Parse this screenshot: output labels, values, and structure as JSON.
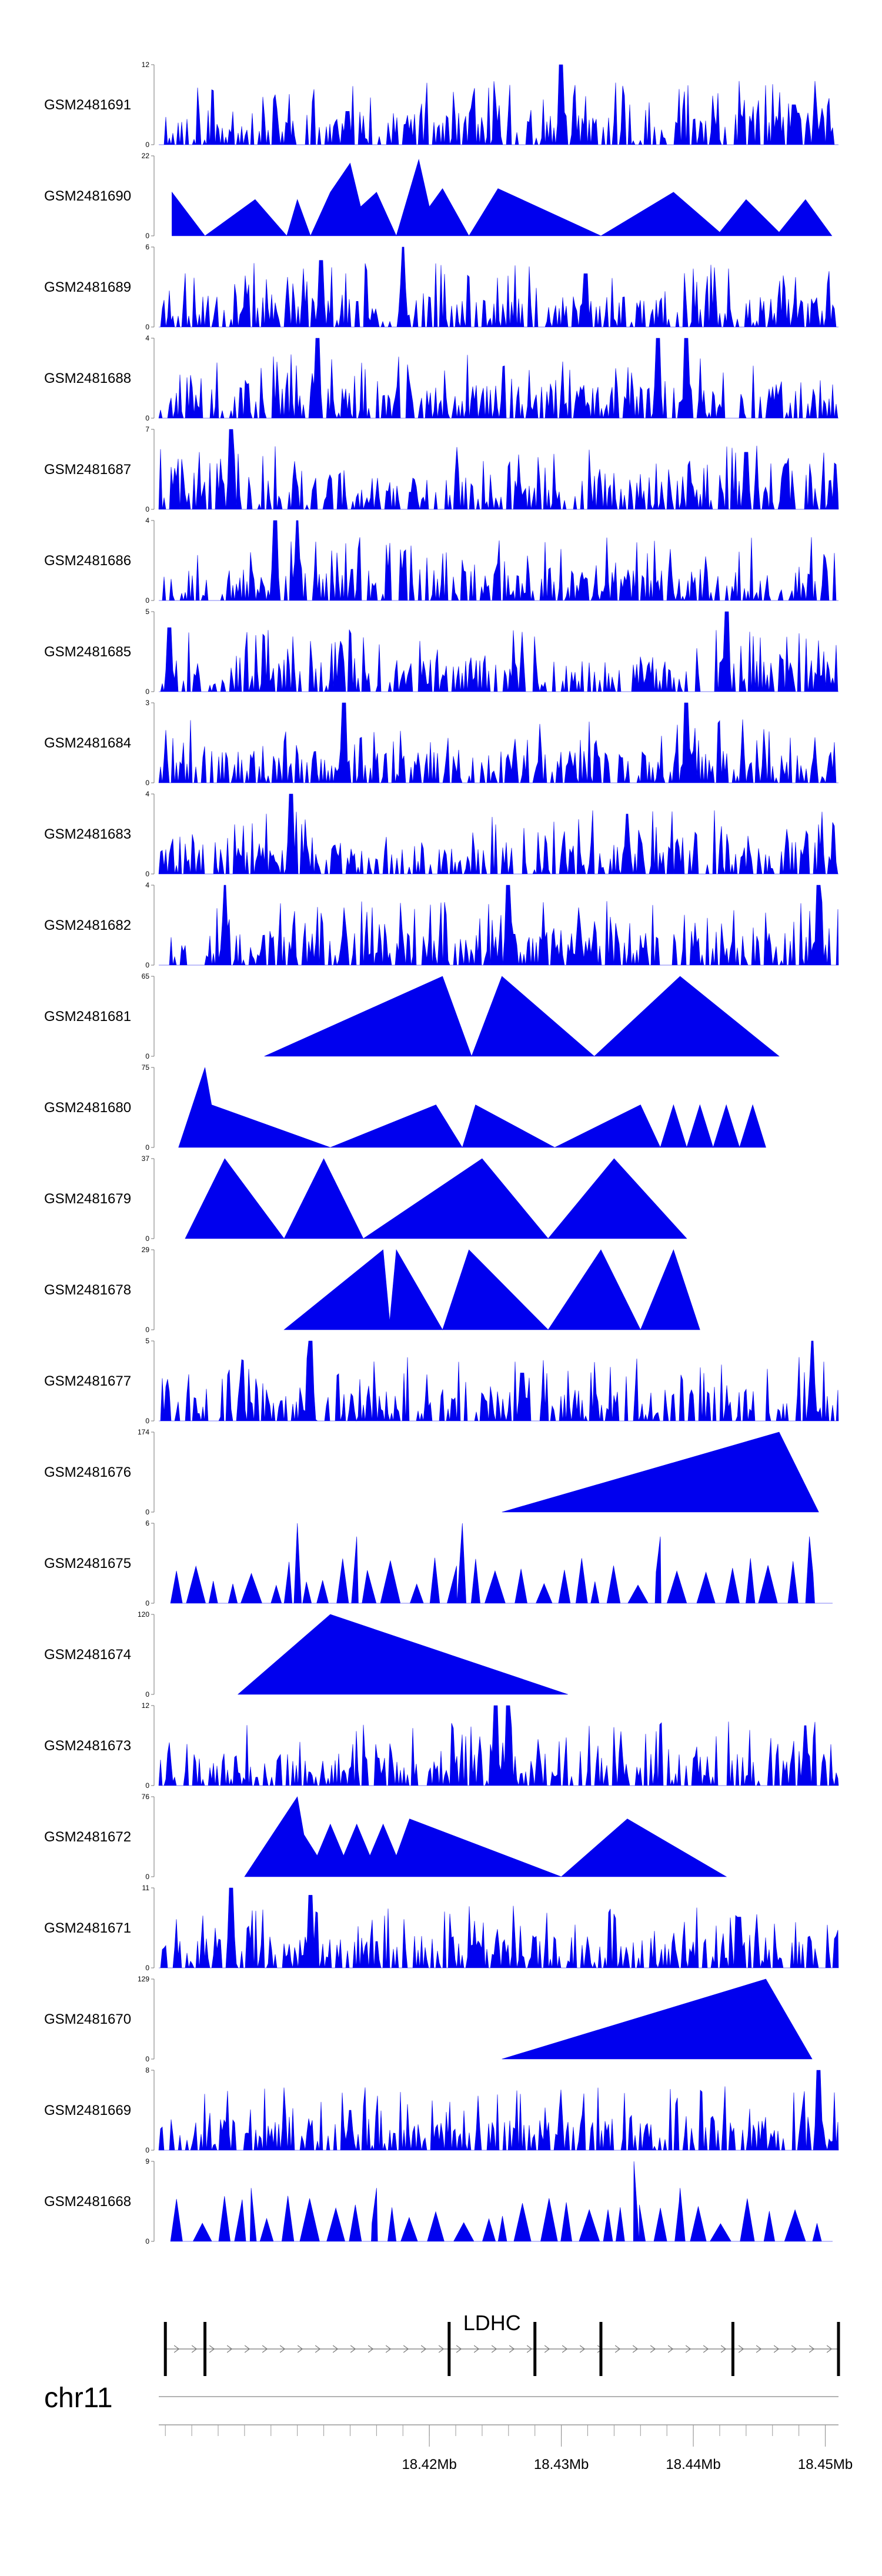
{
  "chart_data": {
    "type": "area",
    "title": "",
    "chromosome": "chr11",
    "fill_color": "#0000ee",
    "xlim": [
      18.3995,
      18.451
    ],
    "tracks": [
      {
        "name": "GSM2481691",
        "ymax": "12",
        "ymin": "0",
        "style": "dense",
        "seed": 11,
        "peaks": [
          [
            18.43,
            12
          ],
          [
            18.4138,
            5
          ],
          [
            18.4476,
            6
          ]
        ]
      },
      {
        "name": "GSM2481690",
        "ymax": "22",
        "ymin": "0",
        "style": "sparse",
        "peaks": [
          [
            18.4005,
            12
          ],
          [
            18.403,
            0
          ],
          [
            18.4068,
            10
          ],
          [
            18.4092,
            0
          ],
          [
            18.41,
            10
          ],
          [
            18.411,
            0
          ],
          [
            18.4125,
            12
          ],
          [
            18.414,
            20
          ],
          [
            18.4148,
            8
          ],
          [
            18.416,
            12
          ],
          [
            18.4175,
            0
          ],
          [
            18.4192,
            21
          ],
          [
            18.42,
            8
          ],
          [
            18.421,
            13
          ],
          [
            18.423,
            0
          ],
          [
            18.4252,
            13
          ],
          [
            18.433,
            0
          ],
          [
            18.4385,
            12
          ],
          [
            18.442,
            1
          ],
          [
            18.444,
            10
          ],
          [
            18.4465,
            1
          ],
          [
            18.4485,
            10
          ],
          [
            18.4505,
            0
          ]
        ]
      },
      {
        "name": "GSM2481689",
        "ymax": "6",
        "ymin": "0",
        "style": "dense",
        "seed": 23,
        "peaks": [
          [
            18.418,
            6
          ],
          [
            18.4118,
            5
          ],
          [
            18.4318,
            4
          ]
        ]
      },
      {
        "name": "GSM2481688",
        "ymax": "4",
        "ymin": "0",
        "style": "dense",
        "seed": 37,
        "peaks": [
          [
            18.4115,
            4
          ],
          [
            18.4373,
            4
          ],
          [
            18.4395,
            4
          ]
        ]
      },
      {
        "name": "GSM2481687",
        "ymax": "7",
        "ymin": "0",
        "style": "dense",
        "seed": 41,
        "peaks": [
          [
            18.405,
            7
          ],
          [
            18.444,
            5
          ],
          [
            18.447,
            4
          ]
        ]
      },
      {
        "name": "GSM2481686",
        "ymax": "4",
        "ymin": "0",
        "style": "dense",
        "seed": 53,
        "peaks": [
          [
            18.4083,
            4
          ],
          [
            18.41,
            4
          ]
        ]
      },
      {
        "name": "GSM2481685",
        "ymax": "5",
        "ymin": "0",
        "style": "dense",
        "seed": 67,
        "peaks": [
          [
            18.4425,
            5
          ],
          [
            18.4003,
            4
          ]
        ]
      },
      {
        "name": "GSM2481684",
        "ymax": "3",
        "ymin": "0",
        "style": "dense",
        "seed": 71,
        "peaks": [
          [
            18.4395,
            3
          ],
          [
            18.4135,
            3
          ]
        ]
      },
      {
        "name": "GSM2481683",
        "ymax": "4",
        "ymin": "0",
        "style": "dense",
        "seed": 83,
        "peaks": [
          [
            18.4095,
            4
          ],
          [
            18.435,
            3
          ]
        ]
      },
      {
        "name": "GSM2481682",
        "ymax": "4",
        "ymin": "0",
        "style": "dense",
        "seed": 97,
        "peaks": [
          [
            18.4045,
            4
          ],
          [
            18.426,
            4
          ],
          [
            18.4495,
            4
          ]
        ]
      },
      {
        "name": "GSM2481681",
        "ymax": "65",
        "ymin": "0",
        "style": "sparse",
        "peaks": [
          [
            18.4075,
            0
          ],
          [
            18.421,
            65
          ],
          [
            18.4232,
            0
          ],
          [
            18.4255,
            65
          ],
          [
            18.4325,
            0
          ],
          [
            18.439,
            65
          ],
          [
            18.4465,
            0
          ]
        ]
      },
      {
        "name": "GSM2481680",
        "ymax": "75",
        "ymin": "0",
        "style": "sparse",
        "peaks": [
          [
            18.401,
            0
          ],
          [
            18.403,
            75
          ],
          [
            18.4035,
            40
          ],
          [
            18.4125,
            0
          ],
          [
            18.4205,
            40
          ],
          [
            18.4225,
            0
          ],
          [
            18.4235,
            40
          ],
          [
            18.4295,
            0
          ],
          [
            18.436,
            40
          ],
          [
            18.4375,
            0
          ],
          [
            18.4385,
            40
          ],
          [
            18.4395,
            0
          ],
          [
            18.4405,
            40
          ],
          [
            18.4415,
            0
          ],
          [
            18.4425,
            40
          ],
          [
            18.4435,
            0
          ],
          [
            18.4445,
            40
          ],
          [
            18.4455,
            0
          ]
        ]
      },
      {
        "name": "GSM2481679",
        "ymax": "37",
        "ymin": "0",
        "style": "sparse",
        "peaks": [
          [
            18.4015,
            0
          ],
          [
            18.4045,
            37
          ],
          [
            18.409,
            0
          ],
          [
            18.412,
            37
          ],
          [
            18.415,
            0
          ],
          [
            18.424,
            37
          ],
          [
            18.429,
            0
          ],
          [
            18.434,
            37
          ],
          [
            18.4395,
            0
          ]
        ]
      },
      {
        "name": "GSM2481678",
        "ymax": "29",
        "ymin": "0",
        "style": "sparse",
        "peaks": [
          [
            18.409,
            0
          ],
          [
            18.4165,
            29
          ],
          [
            18.417,
            3
          ],
          [
            18.4175,
            29
          ],
          [
            18.421,
            0
          ],
          [
            18.423,
            29
          ],
          [
            18.429,
            0
          ],
          [
            18.433,
            29
          ],
          [
            18.436,
            0
          ],
          [
            18.4385,
            29
          ],
          [
            18.4405,
            0
          ]
        ]
      },
      {
        "name": "GSM2481677",
        "ymax": "5",
        "ymin": "0",
        "style": "dense",
        "seed": 101,
        "peaks": [
          [
            18.411,
            5
          ],
          [
            18.449,
            5
          ],
          [
            18.427,
            3
          ]
        ]
      },
      {
        "name": "GSM2481676",
        "ymax": "174",
        "ymin": "0",
        "style": "sparse",
        "peaks": [
          [
            18.4255,
            0
          ],
          [
            18.4465,
            174
          ],
          [
            18.4495,
            0
          ]
        ]
      },
      {
        "name": "GSM2481675",
        "ymax": "6",
        "ymin": "0",
        "style": "sparse",
        "seed": 113,
        "peaks": [
          [
            18.41,
            6
          ],
          [
            18.4145,
            5
          ],
          [
            18.4225,
            6
          ],
          [
            18.4375,
            5
          ],
          [
            18.4488,
            5
          ]
        ]
      },
      {
        "name": "GSM2481674",
        "ymax": "120",
        "ymin": "0",
        "style": "sparse",
        "peaks": [
          [
            18.4055,
            0
          ],
          [
            18.4125,
            120
          ],
          [
            18.4305,
            0
          ]
        ]
      },
      {
        "name": "GSM2481673",
        "ymax": "12",
        "ymin": "0",
        "style": "dense",
        "seed": 127,
        "peaks": [
          [
            18.425,
            12
          ],
          [
            18.426,
            12
          ],
          [
            18.4485,
            9
          ]
        ]
      },
      {
        "name": "GSM2481672",
        "ymax": "76",
        "ymin": "0",
        "style": "sparse",
        "peaks": [
          [
            18.406,
            0
          ],
          [
            18.41,
            76
          ],
          [
            18.4105,
            40
          ],
          [
            18.4115,
            20
          ],
          [
            18.4125,
            50
          ],
          [
            18.4135,
            20
          ],
          [
            18.4145,
            50
          ],
          [
            18.4155,
            20
          ],
          [
            18.4165,
            50
          ],
          [
            18.4175,
            20
          ],
          [
            18.4185,
            55
          ],
          [
            18.43,
            0
          ],
          [
            18.435,
            55
          ],
          [
            18.4425,
            0
          ]
        ]
      },
      {
        "name": "GSM2481671",
        "ymax": "11",
        "ymin": "0",
        "style": "dense",
        "seed": 131,
        "peaks": [
          [
            18.405,
            11
          ],
          [
            18.411,
            10
          ],
          [
            18.4435,
            7
          ]
        ]
      },
      {
        "name": "GSM2481670",
        "ymax": "129",
        "ymin": "0",
        "style": "sparse",
        "peaks": [
          [
            18.4255,
            0
          ],
          [
            18.4455,
            129
          ],
          [
            18.449,
            0
          ]
        ]
      },
      {
        "name": "GSM2481669",
        "ymax": "8",
        "ymin": "0",
        "style": "dense",
        "seed": 137,
        "peaks": [
          [
            18.4495,
            8
          ],
          [
            18.414,
            4
          ]
        ]
      },
      {
        "name": "GSM2481668",
        "ymax": "9",
        "ymin": "0",
        "style": "sparse",
        "seed": 139,
        "peaks": [
          [
            18.4355,
            9
          ],
          [
            18.4065,
            6
          ],
          [
            18.416,
            6
          ],
          [
            18.439,
            6
          ]
        ]
      }
    ],
    "gene": {
      "name": "LDHC",
      "start": 18.4,
      "end": 18.451,
      "exons": [
        18.4,
        18.403,
        18.4215,
        18.428,
        18.433,
        18.443,
        18.451
      ],
      "strand": "+"
    },
    "axis": {
      "ticks": [
        18.42,
        18.43,
        18.44,
        18.45
      ],
      "tick_labels": [
        "18.42Mb",
        "18.43Mb",
        "18.44Mb",
        "18.45Mb"
      ],
      "minor_step": 0.002
    }
  }
}
